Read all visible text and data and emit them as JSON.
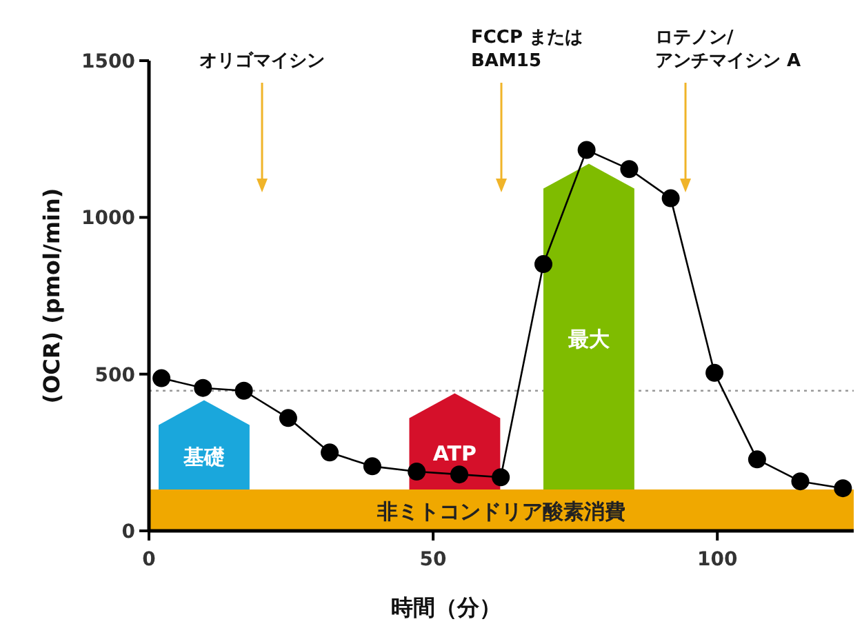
{
  "chart_data": {
    "type": "line",
    "xlabel": "時間（分）",
    "ylabel": "(OCR) (pmol/min)",
    "x": [
      2.2,
      9.5,
      16.7,
      24.5,
      31.8,
      39.3,
      47.1,
      54.6,
      61.9,
      69.4,
      77,
      84.5,
      91.8,
      99.5,
      107,
      114.6,
      122.1
    ],
    "series": [
      {
        "type": "bar",
        "name": "基礎",
        "color": "#1aa7dc",
        "x": [
          9.7
        ],
        "base": [
          132
        ],
        "values": [
          285
        ]
      },
      {
        "type": "bar",
        "name": "ATP",
        "color": "#d5102a",
        "x": [
          53.8
        ],
        "base": [
          132
        ],
        "values": [
          307
        ]
      },
      {
        "type": "bar",
        "name": "最大",
        "color": "#7fbc00",
        "x": [
          77.4
        ],
        "base": [
          132
        ],
        "values": [
          1039
        ]
      },
      {
        "color": "#000000",
        "values": [
          487,
          456,
          447,
          360,
          250,
          206,
          189,
          180,
          171,
          851,
          1215,
          1154,
          1061,
          504,
          228,
          158,
          136
        ]
      }
    ],
    "xlim": [
      0,
      124
    ],
    "ylim": [
      0,
      1500
    ],
    "xticks": [
      0,
      50,
      100
    ],
    "yticks": [
      0,
      500,
      1000,
      1500
    ],
    "marker": "circle",
    "line_style": "solid",
    "ref_lines": [
      {
        "axis": "y",
        "value": 447,
        "color": "#999999",
        "line_style": "dotted"
      },
      {
        "axis": "x",
        "value": 19.9,
        "label": "オリゴマイシン",
        "color": "#f0b429"
      },
      {
        "axis": "x",
        "value": 62,
        "label": "FCCP または\nBAM15",
        "color": "#f0b429"
      },
      {
        "axis": "x",
        "value": 94.4,
        "label": "ロテノン/\nアンチマイシン A",
        "color": "#f0b429"
      }
    ],
    "bands": [
      {
        "axis": "y",
        "from": 0,
        "to": 132,
        "label": "非ミトコンドリア酸素消費",
        "color": "#f0a800"
      }
    ]
  }
}
